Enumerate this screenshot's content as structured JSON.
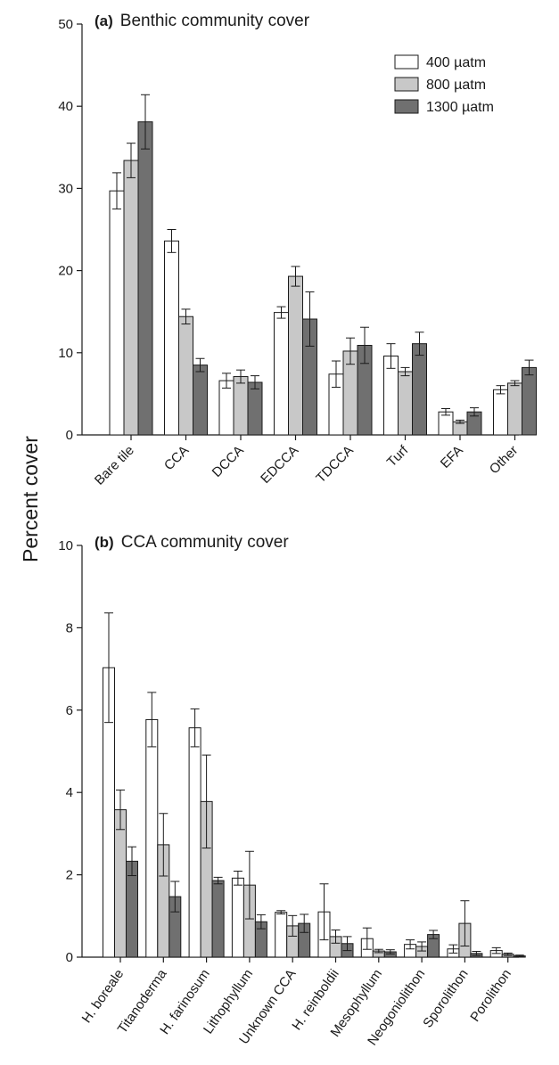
{
  "ylabel": "Percent cover",
  "colors": {
    "400": "#ffffff",
    "800": "#c8c8c8",
    "1300": "#707070",
    "stroke": "#1a1a1a"
  },
  "legend": [
    {
      "label": "400 µatm",
      "color": "#ffffff"
    },
    {
      "label": "800 µatm",
      "color": "#c8c8c8"
    },
    {
      "label": "1300 µatm",
      "color": "#707070"
    }
  ],
  "chart_data": [
    {
      "type": "bar",
      "panel": "(a)",
      "title": "Benthic community cover",
      "categories": [
        "Bare tile",
        "CCA",
        "DCCA",
        "EDCCA",
        "TDCCA",
        "Turf",
        "EFA",
        "Other"
      ],
      "ylim": [
        0,
        50
      ],
      "yticks": [
        0,
        10,
        20,
        30,
        40,
        50
      ],
      "legend_position": "top-right",
      "series": [
        {
          "name": "400 µatm",
          "values": [
            29.7,
            23.6,
            6.6,
            14.9,
            7.4,
            9.6,
            2.8,
            5.5
          ],
          "errors": [
            2.2,
            1.4,
            0.9,
            0.7,
            1.6,
            1.5,
            0.4,
            0.5
          ]
        },
        {
          "name": "800 µatm",
          "values": [
            33.4,
            14.4,
            7.1,
            19.3,
            10.2,
            7.7,
            1.6,
            6.3
          ],
          "errors": [
            2.1,
            0.9,
            0.8,
            1.2,
            1.6,
            0.5,
            0.2,
            0.3
          ]
        },
        {
          "name": "1300 µatm",
          "values": [
            38.1,
            8.5,
            6.4,
            14.1,
            10.9,
            11.1,
            2.8,
            8.2
          ],
          "errors": [
            3.3,
            0.8,
            0.8,
            3.3,
            2.2,
            1.4,
            0.5,
            0.9
          ]
        }
      ]
    },
    {
      "type": "bar",
      "panel": "(b)",
      "title": "CCA community cover",
      "categories": [
        "H. boreale",
        "Titanoderma",
        "H. farinosum",
        "Lithophyllum",
        "Unknown CCA",
        "H. reinboldii",
        "Mesophyllum",
        "Neogoniolithon",
        "Sporolithon",
        "Porolithon"
      ],
      "ylim": [
        0,
        10
      ],
      "yticks": [
        0,
        2,
        4,
        6,
        8,
        10
      ],
      "series": [
        {
          "name": "400 µatm",
          "values": [
            7.03,
            5.77,
            5.57,
            1.92,
            1.09,
            1.1,
            0.45,
            0.31,
            0.2,
            0.16
          ],
          "errors": [
            1.33,
            0.66,
            0.46,
            0.17,
            0.04,
            0.68,
            0.26,
            0.11,
            0.1,
            0.07
          ]
        },
        {
          "name": "800 µatm",
          "values": [
            3.58,
            2.73,
            3.78,
            1.75,
            0.76,
            0.5,
            0.15,
            0.26,
            0.82,
            0.07
          ],
          "errors": [
            0.48,
            0.76,
            1.13,
            0.82,
            0.25,
            0.16,
            0.04,
            0.11,
            0.55,
            0.03
          ]
        },
        {
          "name": "1300 µatm",
          "values": [
            2.33,
            1.47,
            1.86,
            0.86,
            0.82,
            0.33,
            0.13,
            0.55,
            0.09,
            0.03
          ],
          "errors": [
            0.35,
            0.37,
            0.08,
            0.17,
            0.22,
            0.17,
            0.05,
            0.1,
            0.05,
            0.02
          ]
        }
      ]
    }
  ]
}
